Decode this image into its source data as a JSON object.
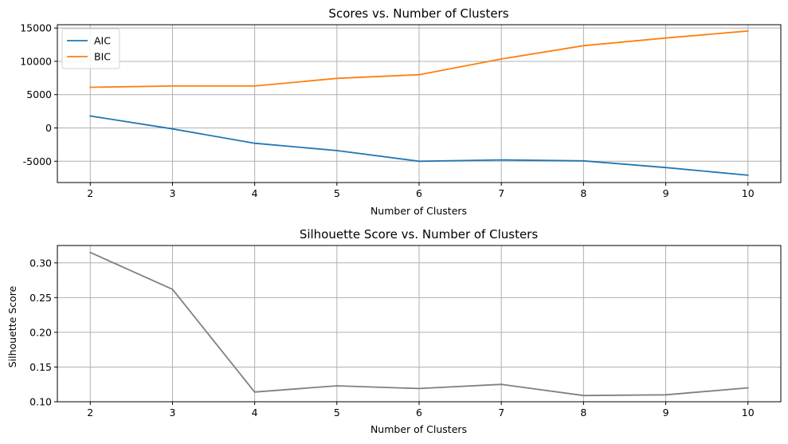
{
  "chart_data": [
    {
      "type": "line",
      "title": "Scores vs. Number of Clusters",
      "xlabel": "Number of Clusters",
      "ylabel": "",
      "x": [
        2,
        3,
        4,
        5,
        6,
        7,
        8,
        9,
        10
      ],
      "xlim": [
        1.6,
        10.4
      ],
      "ylim": [
        -8200,
        15500
      ],
      "yticks": [
        -5000,
        0,
        5000,
        10000,
        15000
      ],
      "grid": true,
      "legend": "top-left",
      "series": [
        {
          "name": "AIC",
          "color": "#1f77b4",
          "values": [
            1800,
            -150,
            -2300,
            -3400,
            -5000,
            -4800,
            -4950,
            -5950,
            -7100
          ]
        },
        {
          "name": "BIC",
          "color": "#ff7f0e",
          "values": [
            6100,
            6300,
            6300,
            7450,
            8000,
            10350,
            12350,
            13500,
            14550
          ]
        }
      ]
    },
    {
      "type": "line",
      "title": "Silhouette Score vs. Number of Clusters",
      "xlabel": "Number of Clusters",
      "ylabel": "Silhouette Score",
      "x": [
        2,
        3,
        4,
        5,
        6,
        7,
        8,
        9,
        10
      ],
      "xlim": [
        1.6,
        10.4
      ],
      "ylim": [
        0.1,
        0.325
      ],
      "yticks": [
        0.1,
        0.15,
        0.2,
        0.25,
        0.3
      ],
      "grid": true,
      "legend": "none",
      "series": [
        {
          "color": "#808080",
          "values": [
            0.315,
            0.262,
            0.114,
            0.123,
            0.119,
            0.125,
            0.109,
            0.11,
            0.12
          ]
        }
      ]
    }
  ]
}
